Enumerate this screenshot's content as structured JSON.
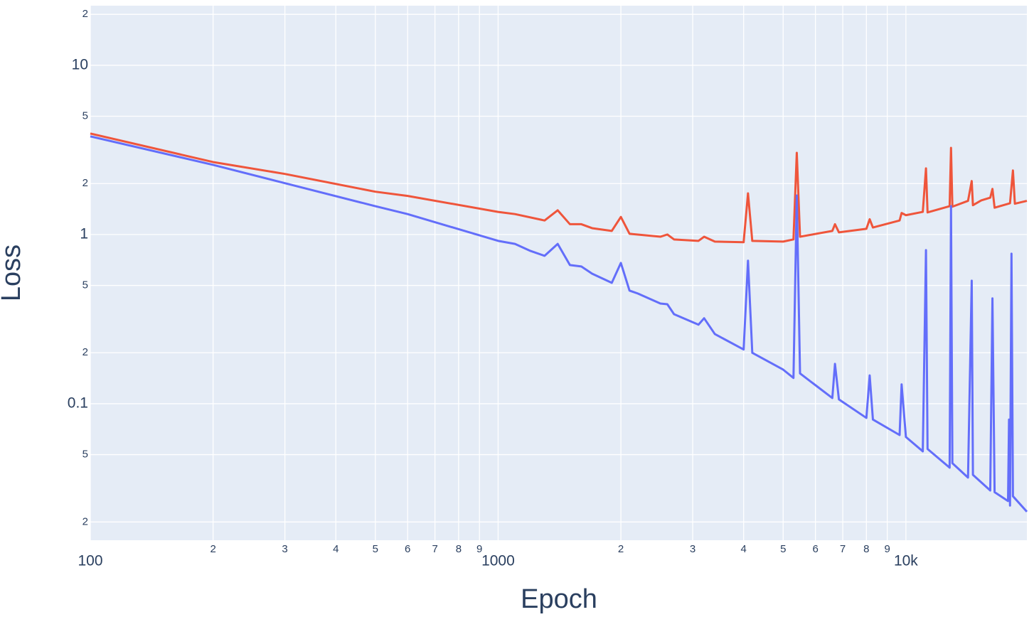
{
  "chart_data": {
    "type": "line",
    "x_label": "Epoch",
    "y_label": "Loss",
    "log_x": true,
    "log_y": true,
    "grid": true,
    "xlim": [
      100,
      19800
    ],
    "ylim": [
      0.0156,
      22.5
    ],
    "xticks": [
      100,
      {
        "value": 200,
        "label": "2"
      },
      {
        "value": 300,
        "label": "3"
      },
      {
        "value": 400,
        "label": "4"
      },
      {
        "value": 500,
        "label": "5"
      },
      {
        "value": 600,
        "label": "6"
      },
      {
        "value": 700,
        "label": "7"
      },
      {
        "value": 800,
        "label": "8"
      },
      {
        "value": 900,
        "label": "9"
      },
      1000,
      {
        "value": 2000,
        "label": "2"
      },
      {
        "value": 3000,
        "label": "3"
      },
      {
        "value": 4000,
        "label": "4"
      },
      {
        "value": 5000,
        "label": "5"
      },
      {
        "value": 6000,
        "label": "6"
      },
      {
        "value": 7000,
        "label": "7"
      },
      {
        "value": 8000,
        "label": "8"
      },
      {
        "value": 9000,
        "label": "9"
      },
      {
        "value": 10000,
        "label": "10k"
      }
    ],
    "yticks": [
      {
        "value": 0.02,
        "label": "2"
      },
      {
        "value": 0.05,
        "label": "5"
      },
      0.1,
      {
        "value": 0.2,
        "label": "2"
      },
      {
        "value": 0.5,
        "label": "5"
      },
      1,
      {
        "value": 2,
        "label": "2"
      },
      {
        "value": 5,
        "label": "5"
      },
      10,
      {
        "value": 20,
        "label": "2"
      }
    ],
    "series": [
      {
        "color": "#ef553b",
        "x": [
          100,
          200,
          300,
          500,
          600,
          1000,
          1100,
          1300,
          1400,
          1500,
          1600,
          1700,
          1900,
          2000,
          2100,
          2500,
          2600,
          2700,
          3100,
          3200,
          3400,
          4000,
          4100,
          4200,
          5000,
          5300,
          5400,
          5500,
          6600,
          6700,
          6850,
          8000,
          8150,
          8300,
          9650,
          9760,
          10000,
          11000,
          11200,
          11300,
          12800,
          12900,
          13000,
          14200,
          14500,
          14600,
          15300,
          16100,
          16300,
          16500,
          18000,
          18300,
          18500,
          19800
        ],
        "values": [
          3.95,
          2.68,
          2.28,
          1.79,
          1.69,
          1.36,
          1.32,
          1.21,
          1.39,
          1.15,
          1.15,
          1.09,
          1.05,
          1.27,
          1.01,
          0.97,
          1.0,
          0.935,
          0.917,
          0.97,
          0.908,
          0.9,
          1.75,
          0.917,
          0.908,
          0.935,
          3.04,
          0.97,
          1.05,
          1.15,
          1.03,
          1.08,
          1.23,
          1.1,
          1.21,
          1.34,
          1.3,
          1.36,
          2.46,
          1.35,
          1.47,
          3.25,
          1.46,
          1.58,
          2.07,
          1.49,
          1.59,
          1.65,
          1.86,
          1.44,
          1.53,
          2.39,
          1.52,
          1.58
        ]
      },
      {
        "color": "#636efa",
        "x": [
          100,
          200,
          300,
          500,
          600,
          1000,
          1100,
          1200,
          1300,
          1400,
          1500,
          1600,
          1700,
          1900,
          2000,
          2100,
          2200,
          2500,
          2600,
          2700,
          3100,
          3200,
          3400,
          4000,
          4100,
          4200,
          5000,
          5300,
          5400,
          5500,
          6600,
          6700,
          6850,
          8000,
          8150,
          8300,
          9650,
          9760,
          10000,
          11000,
          11200,
          11300,
          12800,
          12900,
          13000,
          14200,
          14500,
          14600,
          16100,
          16300,
          16500,
          17800,
          17900,
          18000,
          18150,
          18300,
          19800
        ],
        "values": [
          3.8,
          2.58,
          2.01,
          1.47,
          1.32,
          0.917,
          0.88,
          0.8,
          0.748,
          0.88,
          0.66,
          0.647,
          0.587,
          0.518,
          0.679,
          0.466,
          0.448,
          0.391,
          0.387,
          0.338,
          0.293,
          0.32,
          0.258,
          0.209,
          0.7,
          0.2,
          0.159,
          0.142,
          1.7,
          0.151,
          0.108,
          0.172,
          0.106,
          0.0824,
          0.147,
          0.0806,
          0.0653,
          0.13,
          0.0636,
          0.0523,
          0.808,
          0.054,
          0.0419,
          1.47,
          0.0445,
          0.0366,
          0.533,
          0.038,
          0.0307,
          0.419,
          0.03,
          0.0266,
          0.0806,
          0.025,
          0.77,
          0.0284,
          0.023
        ]
      }
    ]
  }
}
